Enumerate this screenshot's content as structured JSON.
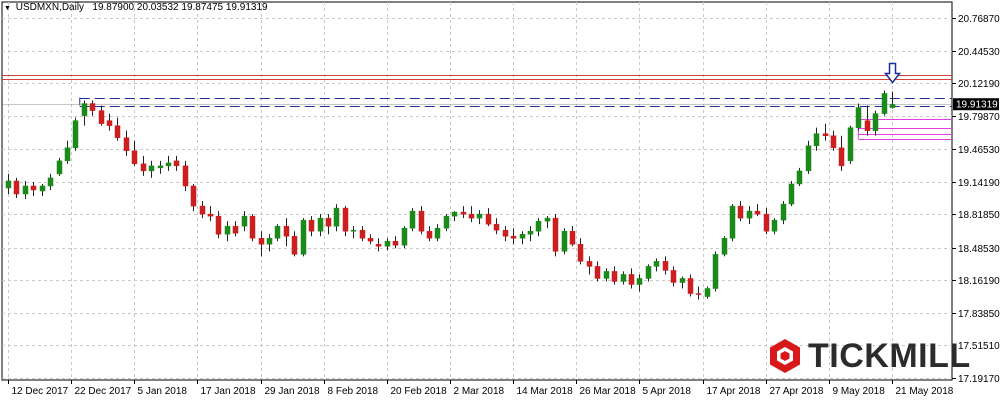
{
  "header": {
    "symbol": "USDMXN,Daily",
    "ohlc": "19.87900 20.03532 19.87475 19.91319"
  },
  "brand": {
    "name": "TICKMILL",
    "color": "#d7191c"
  },
  "colors": {
    "bull": "#1a8a1a",
    "bear": "#cc1f1f",
    "grid": "#c8c8c8",
    "red_level": "#d24040",
    "blue_level": "#1c2f9c",
    "magenta": "#e040e0"
  },
  "chart_data": {
    "type": "candlestick",
    "symbol": "USDMXN",
    "timeframe": "Daily",
    "last_price": "19.91319",
    "ylim": [
      17.17,
      20.93
    ],
    "grid": true,
    "y_ticks": [
      "20.76870",
      "20.44530",
      "20.12190",
      "19.79870",
      "19.46530",
      "19.14190",
      "18.81850",
      "18.48530",
      "18.16190",
      "17.83850",
      "17.51510",
      "17.19170"
    ],
    "x_ticks": [
      "12 Dec 2017",
      "22 Dec 2017",
      "5 Jan 2018",
      "17 Jan 2018",
      "29 Jan 2018",
      "8 Feb 2018",
      "20 Feb 2018",
      "2 Mar 2018",
      "14 Mar 2018",
      "26 Mar 2018",
      "5 Apr 2018",
      "17 Apr 2018",
      "27 Apr 2018",
      "9 May 2018",
      "21 May 2018"
    ],
    "levels": [
      {
        "type": "red",
        "value": 20.2
      },
      {
        "type": "red",
        "value": 20.16
      },
      {
        "type": "blue-dashed",
        "value": 19.98
      },
      {
        "type": "blue-dashed",
        "value": 19.9
      },
      {
        "type": "magenta",
        "value": 19.77
      },
      {
        "type": "magenta",
        "value": 19.68
      },
      {
        "type": "magenta",
        "value": 19.62
      },
      {
        "type": "magenta",
        "value": 19.57
      }
    ],
    "candles": [
      [
        19.08,
        19.22,
        19.02,
        19.15
      ],
      [
        19.15,
        19.18,
        18.98,
        19.02
      ],
      [
        19.02,
        19.15,
        18.97,
        19.1
      ],
      [
        19.1,
        19.14,
        19.0,
        19.06
      ],
      [
        19.05,
        19.12,
        19.0,
        19.1
      ],
      [
        19.1,
        19.22,
        19.06,
        19.18
      ],
      [
        19.22,
        19.38,
        19.2,
        19.35
      ],
      [
        19.35,
        19.55,
        19.32,
        19.48
      ],
      [
        19.48,
        19.78,
        19.45,
        19.75
      ],
      [
        19.8,
        19.95,
        19.7,
        19.92
      ],
      [
        19.92,
        19.95,
        19.8,
        19.85
      ],
      [
        19.85,
        19.9,
        19.7,
        19.72
      ],
      [
        19.75,
        19.82,
        19.65,
        19.7
      ],
      [
        19.7,
        19.78,
        19.55,
        19.58
      ],
      [
        19.58,
        19.65,
        19.4,
        19.45
      ],
      [
        19.45,
        19.55,
        19.3,
        19.32
      ],
      [
        19.32,
        19.4,
        19.2,
        19.25
      ],
      [
        19.25,
        19.35,
        19.18,
        19.3
      ],
      [
        19.28,
        19.35,
        19.22,
        19.3
      ],
      [
        19.3,
        19.4,
        19.25,
        19.33
      ],
      [
        19.35,
        19.4,
        19.25,
        19.3
      ],
      [
        19.3,
        19.35,
        19.05,
        19.1
      ],
      [
        19.1,
        19.12,
        18.85,
        18.9
      ],
      [
        18.9,
        18.95,
        18.78,
        18.82
      ],
      [
        18.82,
        18.9,
        18.75,
        18.8
      ],
      [
        18.8,
        18.85,
        18.58,
        18.62
      ],
      [
        18.62,
        18.75,
        18.55,
        18.7
      ],
      [
        18.7,
        18.75,
        18.6,
        18.63
      ],
      [
        18.7,
        18.85,
        18.65,
        18.8
      ],
      [
        18.8,
        18.82,
        18.55,
        18.58
      ],
      [
        18.58,
        18.65,
        18.4,
        18.52
      ],
      [
        18.52,
        18.62,
        18.45,
        18.58
      ],
      [
        18.58,
        18.72,
        18.55,
        18.7
      ],
      [
        18.7,
        18.78,
        18.5,
        18.6
      ],
      [
        18.6,
        18.65,
        18.4,
        18.42
      ],
      [
        18.42,
        18.78,
        18.4,
        18.76
      ],
      [
        18.76,
        18.8,
        18.6,
        18.65
      ],
      [
        18.65,
        18.82,
        18.6,
        18.78
      ],
      [
        18.78,
        18.82,
        18.62,
        18.7
      ],
      [
        18.7,
        18.92,
        18.65,
        18.88
      ],
      [
        18.88,
        18.9,
        18.6,
        18.65
      ],
      [
        18.65,
        18.7,
        18.58,
        18.66
      ],
      [
        18.66,
        18.7,
        18.55,
        18.58
      ],
      [
        18.58,
        18.62,
        18.52,
        18.55
      ],
      [
        18.52,
        18.58,
        18.45,
        18.5
      ],
      [
        18.5,
        18.58,
        18.46,
        18.55
      ],
      [
        18.55,
        18.6,
        18.48,
        18.51
      ],
      [
        18.51,
        18.7,
        18.48,
        18.68
      ],
      [
        18.68,
        18.88,
        18.65,
        18.85
      ],
      [
        18.85,
        18.9,
        18.62,
        18.65
      ],
      [
        18.65,
        18.7,
        18.55,
        18.58
      ],
      [
        18.58,
        18.72,
        18.55,
        18.68
      ],
      [
        18.68,
        18.82,
        18.65,
        18.8
      ],
      [
        18.8,
        18.85,
        18.75,
        18.84
      ],
      [
        18.84,
        18.9,
        18.78,
        18.82
      ],
      [
        18.82,
        18.9,
        18.74,
        18.78
      ],
      [
        18.78,
        18.86,
        18.72,
        18.82
      ],
      [
        18.82,
        18.88,
        18.7,
        18.72
      ],
      [
        18.72,
        18.78,
        18.62,
        18.66
      ],
      [
        18.66,
        18.7,
        18.55,
        18.6
      ],
      [
        18.6,
        18.68,
        18.52,
        18.58
      ],
      [
        18.58,
        18.65,
        18.52,
        18.62
      ],
      [
        18.62,
        18.7,
        18.55,
        18.65
      ],
      [
        18.65,
        18.78,
        18.6,
        18.75
      ],
      [
        18.75,
        18.8,
        18.68,
        18.78
      ],
      [
        18.78,
        18.82,
        18.4,
        18.45
      ],
      [
        18.45,
        18.68,
        18.42,
        18.65
      ],
      [
        18.65,
        18.7,
        18.5,
        18.52
      ],
      [
        18.52,
        18.58,
        18.32,
        18.35
      ],
      [
        18.35,
        18.4,
        18.22,
        18.3
      ],
      [
        18.3,
        18.35,
        18.15,
        18.18
      ],
      [
        18.18,
        18.28,
        18.15,
        18.25
      ],
      [
        18.25,
        18.3,
        18.12,
        18.15
      ],
      [
        18.15,
        18.25,
        18.12,
        18.22
      ],
      [
        18.22,
        18.28,
        18.08,
        18.12
      ],
      [
        18.12,
        18.22,
        18.05,
        18.18
      ],
      [
        18.18,
        18.32,
        18.15,
        18.3
      ],
      [
        18.3,
        18.38,
        18.25,
        18.35
      ],
      [
        18.35,
        18.4,
        18.22,
        18.26
      ],
      [
        18.26,
        18.3,
        18.1,
        18.14
      ],
      [
        18.14,
        18.2,
        18.08,
        18.18
      ],
      [
        18.18,
        18.22,
        18.0,
        18.03
      ],
      [
        18.03,
        18.1,
        17.97,
        18.02
      ],
      [
        18.0,
        18.1,
        17.98,
        18.08
      ],
      [
        18.08,
        18.45,
        18.05,
        18.42
      ],
      [
        18.42,
        18.6,
        18.4,
        18.58
      ],
      [
        18.58,
        18.92,
        18.55,
        18.9
      ],
      [
        18.9,
        18.95,
        18.75,
        18.78
      ],
      [
        18.78,
        18.9,
        18.72,
        18.85
      ],
      [
        18.85,
        18.92,
        18.8,
        18.82
      ],
      [
        18.82,
        18.88,
        18.62,
        18.65
      ],
      [
        18.65,
        18.78,
        18.62,
        18.76
      ],
      [
        18.76,
        18.95,
        18.72,
        18.92
      ],
      [
        18.92,
        19.15,
        18.9,
        19.12
      ],
      [
        19.12,
        19.28,
        19.1,
        19.25
      ],
      [
        19.25,
        19.55,
        19.22,
        19.5
      ],
      [
        19.5,
        19.68,
        19.45,
        19.62
      ],
      [
        19.62,
        19.72,
        19.55,
        19.6
      ],
      [
        19.6,
        19.65,
        19.45,
        19.48
      ],
      [
        19.48,
        19.6,
        19.25,
        19.3
      ],
      [
        19.35,
        19.7,
        19.32,
        19.68
      ],
      [
        19.68,
        19.92,
        19.65,
        19.88
      ],
      [
        19.75,
        19.9,
        19.6,
        19.65
      ],
      [
        19.65,
        19.85,
        19.6,
        19.82
      ],
      [
        19.82,
        20.05,
        19.8,
        20.02
      ],
      [
        19.88,
        20.04,
        19.87,
        19.91
      ]
    ]
  }
}
